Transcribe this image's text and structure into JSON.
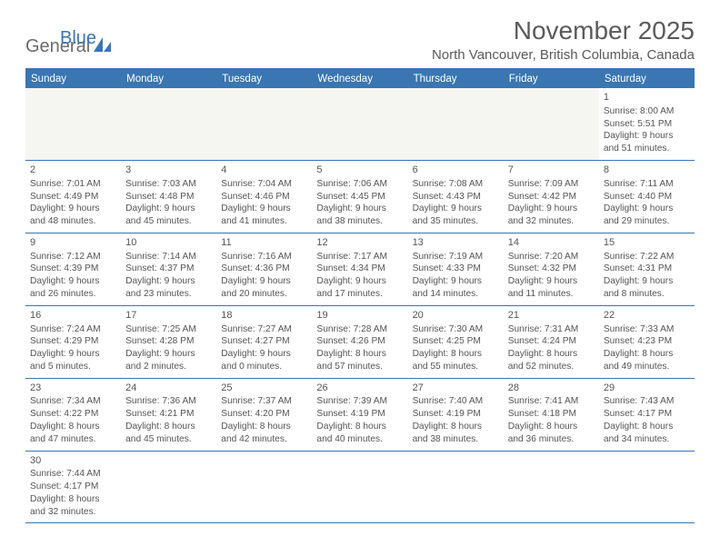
{
  "logo": {
    "part1": "General",
    "part2": "Blue"
  },
  "title": "November 2025",
  "location": "North Vancouver, British Columbia, Canada",
  "header_bg": "#3976b2",
  "border_color": "#3976b2",
  "text_color": "#555555",
  "weekdays": [
    "Sunday",
    "Monday",
    "Tuesday",
    "Wednesday",
    "Thursday",
    "Friday",
    "Saturday"
  ],
  "weeks": [
    [
      null,
      null,
      null,
      null,
      null,
      null,
      {
        "n": "1",
        "sunrise": "Sunrise: 8:00 AM",
        "sunset": "Sunset: 5:51 PM",
        "day1": "Daylight: 9 hours",
        "day2": "and 51 minutes."
      }
    ],
    [
      {
        "n": "2",
        "sunrise": "Sunrise: 7:01 AM",
        "sunset": "Sunset: 4:49 PM",
        "day1": "Daylight: 9 hours",
        "day2": "and 48 minutes."
      },
      {
        "n": "3",
        "sunrise": "Sunrise: 7:03 AM",
        "sunset": "Sunset: 4:48 PM",
        "day1": "Daylight: 9 hours",
        "day2": "and 45 minutes."
      },
      {
        "n": "4",
        "sunrise": "Sunrise: 7:04 AM",
        "sunset": "Sunset: 4:46 PM",
        "day1": "Daylight: 9 hours",
        "day2": "and 41 minutes."
      },
      {
        "n": "5",
        "sunrise": "Sunrise: 7:06 AM",
        "sunset": "Sunset: 4:45 PM",
        "day1": "Daylight: 9 hours",
        "day2": "and 38 minutes."
      },
      {
        "n": "6",
        "sunrise": "Sunrise: 7:08 AM",
        "sunset": "Sunset: 4:43 PM",
        "day1": "Daylight: 9 hours",
        "day2": "and 35 minutes."
      },
      {
        "n": "7",
        "sunrise": "Sunrise: 7:09 AM",
        "sunset": "Sunset: 4:42 PM",
        "day1": "Daylight: 9 hours",
        "day2": "and 32 minutes."
      },
      {
        "n": "8",
        "sunrise": "Sunrise: 7:11 AM",
        "sunset": "Sunset: 4:40 PM",
        "day1": "Daylight: 9 hours",
        "day2": "and 29 minutes."
      }
    ],
    [
      {
        "n": "9",
        "sunrise": "Sunrise: 7:12 AM",
        "sunset": "Sunset: 4:39 PM",
        "day1": "Daylight: 9 hours",
        "day2": "and 26 minutes."
      },
      {
        "n": "10",
        "sunrise": "Sunrise: 7:14 AM",
        "sunset": "Sunset: 4:37 PM",
        "day1": "Daylight: 9 hours",
        "day2": "and 23 minutes."
      },
      {
        "n": "11",
        "sunrise": "Sunrise: 7:16 AM",
        "sunset": "Sunset: 4:36 PM",
        "day1": "Daylight: 9 hours",
        "day2": "and 20 minutes."
      },
      {
        "n": "12",
        "sunrise": "Sunrise: 7:17 AM",
        "sunset": "Sunset: 4:34 PM",
        "day1": "Daylight: 9 hours",
        "day2": "and 17 minutes."
      },
      {
        "n": "13",
        "sunrise": "Sunrise: 7:19 AM",
        "sunset": "Sunset: 4:33 PM",
        "day1": "Daylight: 9 hours",
        "day2": "and 14 minutes."
      },
      {
        "n": "14",
        "sunrise": "Sunrise: 7:20 AM",
        "sunset": "Sunset: 4:32 PM",
        "day1": "Daylight: 9 hours",
        "day2": "and 11 minutes."
      },
      {
        "n": "15",
        "sunrise": "Sunrise: 7:22 AM",
        "sunset": "Sunset: 4:31 PM",
        "day1": "Daylight: 9 hours",
        "day2": "and 8 minutes."
      }
    ],
    [
      {
        "n": "16",
        "sunrise": "Sunrise: 7:24 AM",
        "sunset": "Sunset: 4:29 PM",
        "day1": "Daylight: 9 hours",
        "day2": "and 5 minutes."
      },
      {
        "n": "17",
        "sunrise": "Sunrise: 7:25 AM",
        "sunset": "Sunset: 4:28 PM",
        "day1": "Daylight: 9 hours",
        "day2": "and 2 minutes."
      },
      {
        "n": "18",
        "sunrise": "Sunrise: 7:27 AM",
        "sunset": "Sunset: 4:27 PM",
        "day1": "Daylight: 9 hours",
        "day2": "and 0 minutes."
      },
      {
        "n": "19",
        "sunrise": "Sunrise: 7:28 AM",
        "sunset": "Sunset: 4:26 PM",
        "day1": "Daylight: 8 hours",
        "day2": "and 57 minutes."
      },
      {
        "n": "20",
        "sunrise": "Sunrise: 7:30 AM",
        "sunset": "Sunset: 4:25 PM",
        "day1": "Daylight: 8 hours",
        "day2": "and 55 minutes."
      },
      {
        "n": "21",
        "sunrise": "Sunrise: 7:31 AM",
        "sunset": "Sunset: 4:24 PM",
        "day1": "Daylight: 8 hours",
        "day2": "and 52 minutes."
      },
      {
        "n": "22",
        "sunrise": "Sunrise: 7:33 AM",
        "sunset": "Sunset: 4:23 PM",
        "day1": "Daylight: 8 hours",
        "day2": "and 49 minutes."
      }
    ],
    [
      {
        "n": "23",
        "sunrise": "Sunrise: 7:34 AM",
        "sunset": "Sunset: 4:22 PM",
        "day1": "Daylight: 8 hours",
        "day2": "and 47 minutes."
      },
      {
        "n": "24",
        "sunrise": "Sunrise: 7:36 AM",
        "sunset": "Sunset: 4:21 PM",
        "day1": "Daylight: 8 hours",
        "day2": "and 45 minutes."
      },
      {
        "n": "25",
        "sunrise": "Sunrise: 7:37 AM",
        "sunset": "Sunset: 4:20 PM",
        "day1": "Daylight: 8 hours",
        "day2": "and 42 minutes."
      },
      {
        "n": "26",
        "sunrise": "Sunrise: 7:39 AM",
        "sunset": "Sunset: 4:19 PM",
        "day1": "Daylight: 8 hours",
        "day2": "and 40 minutes."
      },
      {
        "n": "27",
        "sunrise": "Sunrise: 7:40 AM",
        "sunset": "Sunset: 4:19 PM",
        "day1": "Daylight: 8 hours",
        "day2": "and 38 minutes."
      },
      {
        "n": "28",
        "sunrise": "Sunrise: 7:41 AM",
        "sunset": "Sunset: 4:18 PM",
        "day1": "Daylight: 8 hours",
        "day2": "and 36 minutes."
      },
      {
        "n": "29",
        "sunrise": "Sunrise: 7:43 AM",
        "sunset": "Sunset: 4:17 PM",
        "day1": "Daylight: 8 hours",
        "day2": "and 34 minutes."
      }
    ],
    [
      {
        "n": "30",
        "sunrise": "Sunrise: 7:44 AM",
        "sunset": "Sunset: 4:17 PM",
        "day1": "Daylight: 8 hours",
        "day2": "and 32 minutes."
      },
      null,
      null,
      null,
      null,
      null,
      null
    ]
  ]
}
